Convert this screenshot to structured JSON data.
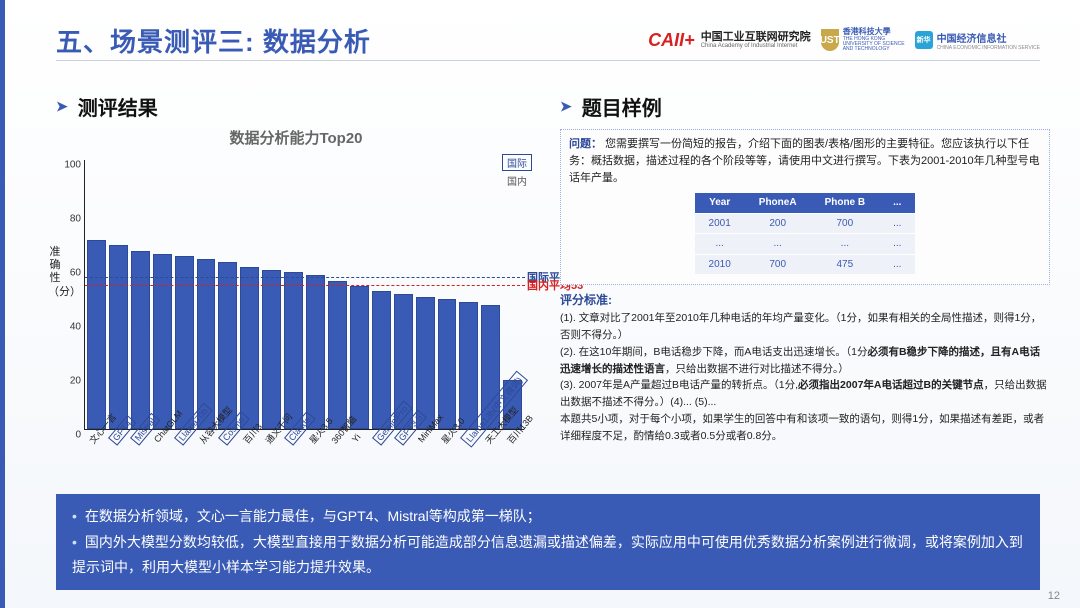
{
  "page_number": "12",
  "colors": {
    "accent": "#3a5bb5",
    "accent_dark": "#2e4a96",
    "bar_fill": "#3a5bb5",
    "line_intl": "#2e4a96",
    "line_dom": "#d82020",
    "hk_gold": "#c9a84a",
    "ce_blue": "#2aa3d8"
  },
  "header": {
    "title": "五、场景测评三: 数据分析",
    "logos": {
      "caii_mark": "CAII+",
      "caii_zh": "中国工业互联网研究院",
      "caii_en": "China Academy of Industrial Internet",
      "hk_zh": "香港科技大學",
      "hk_en1": "THE HONG KONG",
      "hk_en2": "UNIVERSITY OF SCIENCE",
      "hk_en3": "AND TECHNOLOGY",
      "ce_zh": "中国经济信息社",
      "ce_en": "CHINA ECONOMIC INFORMATION SERVICE"
    }
  },
  "left": {
    "section_title": "测评结果",
    "chart_title": "数据分析能力Top20",
    "y_axis_label": "准确性（分）",
    "legend_intl": "国际",
    "legend_dom": "国内",
    "hline_intl_label": "国际平均56",
    "hline_dom_label": "国内平均53",
    "ylim": [
      0,
      100
    ],
    "ytick_step": 20,
    "ref_lines": {
      "intl": 56,
      "dom": 53
    },
    "bars": [
      {
        "label": "文心一言",
        "value": 70,
        "intl": false
      },
      {
        "label": "GPT4",
        "value": 68,
        "intl": true
      },
      {
        "label": "Mistral",
        "value": 66,
        "intl": true
      },
      {
        "label": "ChatGLM",
        "value": 65,
        "intl": false
      },
      {
        "label": "Llama70b",
        "value": 64,
        "intl": true
      },
      {
        "label": "从容大模型",
        "value": 63,
        "intl": false
      },
      {
        "label": "Cosmo",
        "value": 62,
        "intl": true
      },
      {
        "label": "百川3",
        "value": 60,
        "intl": false
      },
      {
        "label": "通义千问",
        "value": 59,
        "intl": false
      },
      {
        "label": "Claude",
        "value": 58,
        "intl": true
      },
      {
        "label": "星火3.5",
        "value": 57,
        "intl": false
      },
      {
        "label": "360智脑",
        "value": 55,
        "intl": false
      },
      {
        "label": "Yi",
        "value": 53,
        "intl": false
      },
      {
        "label": "GeminiPro",
        "value": 51,
        "intl": true
      },
      {
        "label": "GPT3.5",
        "value": 50,
        "intl": true
      },
      {
        "label": "MiniMax",
        "value": 49,
        "intl": false
      },
      {
        "label": "星火3.0",
        "value": 48,
        "intl": false
      },
      {
        "label": "Llama13b(中文微调)",
        "value": 47,
        "intl": true
      },
      {
        "label": "天工大模型",
        "value": 46,
        "intl": false
      },
      {
        "label": "百川13B",
        "value": 18,
        "intl": false
      }
    ]
  },
  "right": {
    "section_title": "题目样例",
    "question_label": "问题：",
    "question_text": "您需要撰写一份简短的报告，介绍下面的图表/表格/图形的主要特征。您应该执行以下任务：概括数据，描述过程的各个阶段等等，请使用中文进行撰写。下表为2001-2010年几种型号电话年产量。",
    "table": {
      "headers": [
        "Year",
        "PhoneA",
        "Phone B",
        "..."
      ],
      "rows": [
        [
          "2001",
          "200",
          "700",
          "..."
        ],
        [
          "...",
          "...",
          "...",
          "..."
        ],
        [
          "2010",
          "700",
          "475",
          "..."
        ]
      ]
    },
    "criteria_header": "评分标准:",
    "criteria": [
      "(1). 文章对比了2001年至2010年几种电话的年均产量变化。（1分，如果有相关的全局性描述，则得1分，否则不得分。）",
      "(2). 在这10年期间，B电话稳步下降，而A电话支出迅速增长。（1分<b>必须有B稳步下降的描述，且有A电话迅速增长的描述性语言</b>，只给出数据不进行对比描述不得分。）",
      "(3). 2007年是A产量超过B电话产量的转折点。（1分,<b>必须指出2007年A电话超过B的关键节点</b>，只给出数据出数据不描述不得分。）(4)... (5)...",
      "本题共5小项，对于每个小项，如果学生的回答中有和该项一致的语句，则得1分，如果描述有差距，或者详细程度不足，酌情给0.3或者0.5分或者0.8分。"
    ]
  },
  "footer": {
    "lines": [
      "在数据分析领域，文心一言能力最佳，与GPT4、Mistral等构成第一梯队；",
      "国内外大模型分数均较低，大模型直接用于数据分析可能造成部分信息遗漏或描述偏差，实际应用中可使用优秀数据分析案例进行微调，或将案例加入到提示词中，利用大模型小样本学习能力提升效果。"
    ]
  }
}
